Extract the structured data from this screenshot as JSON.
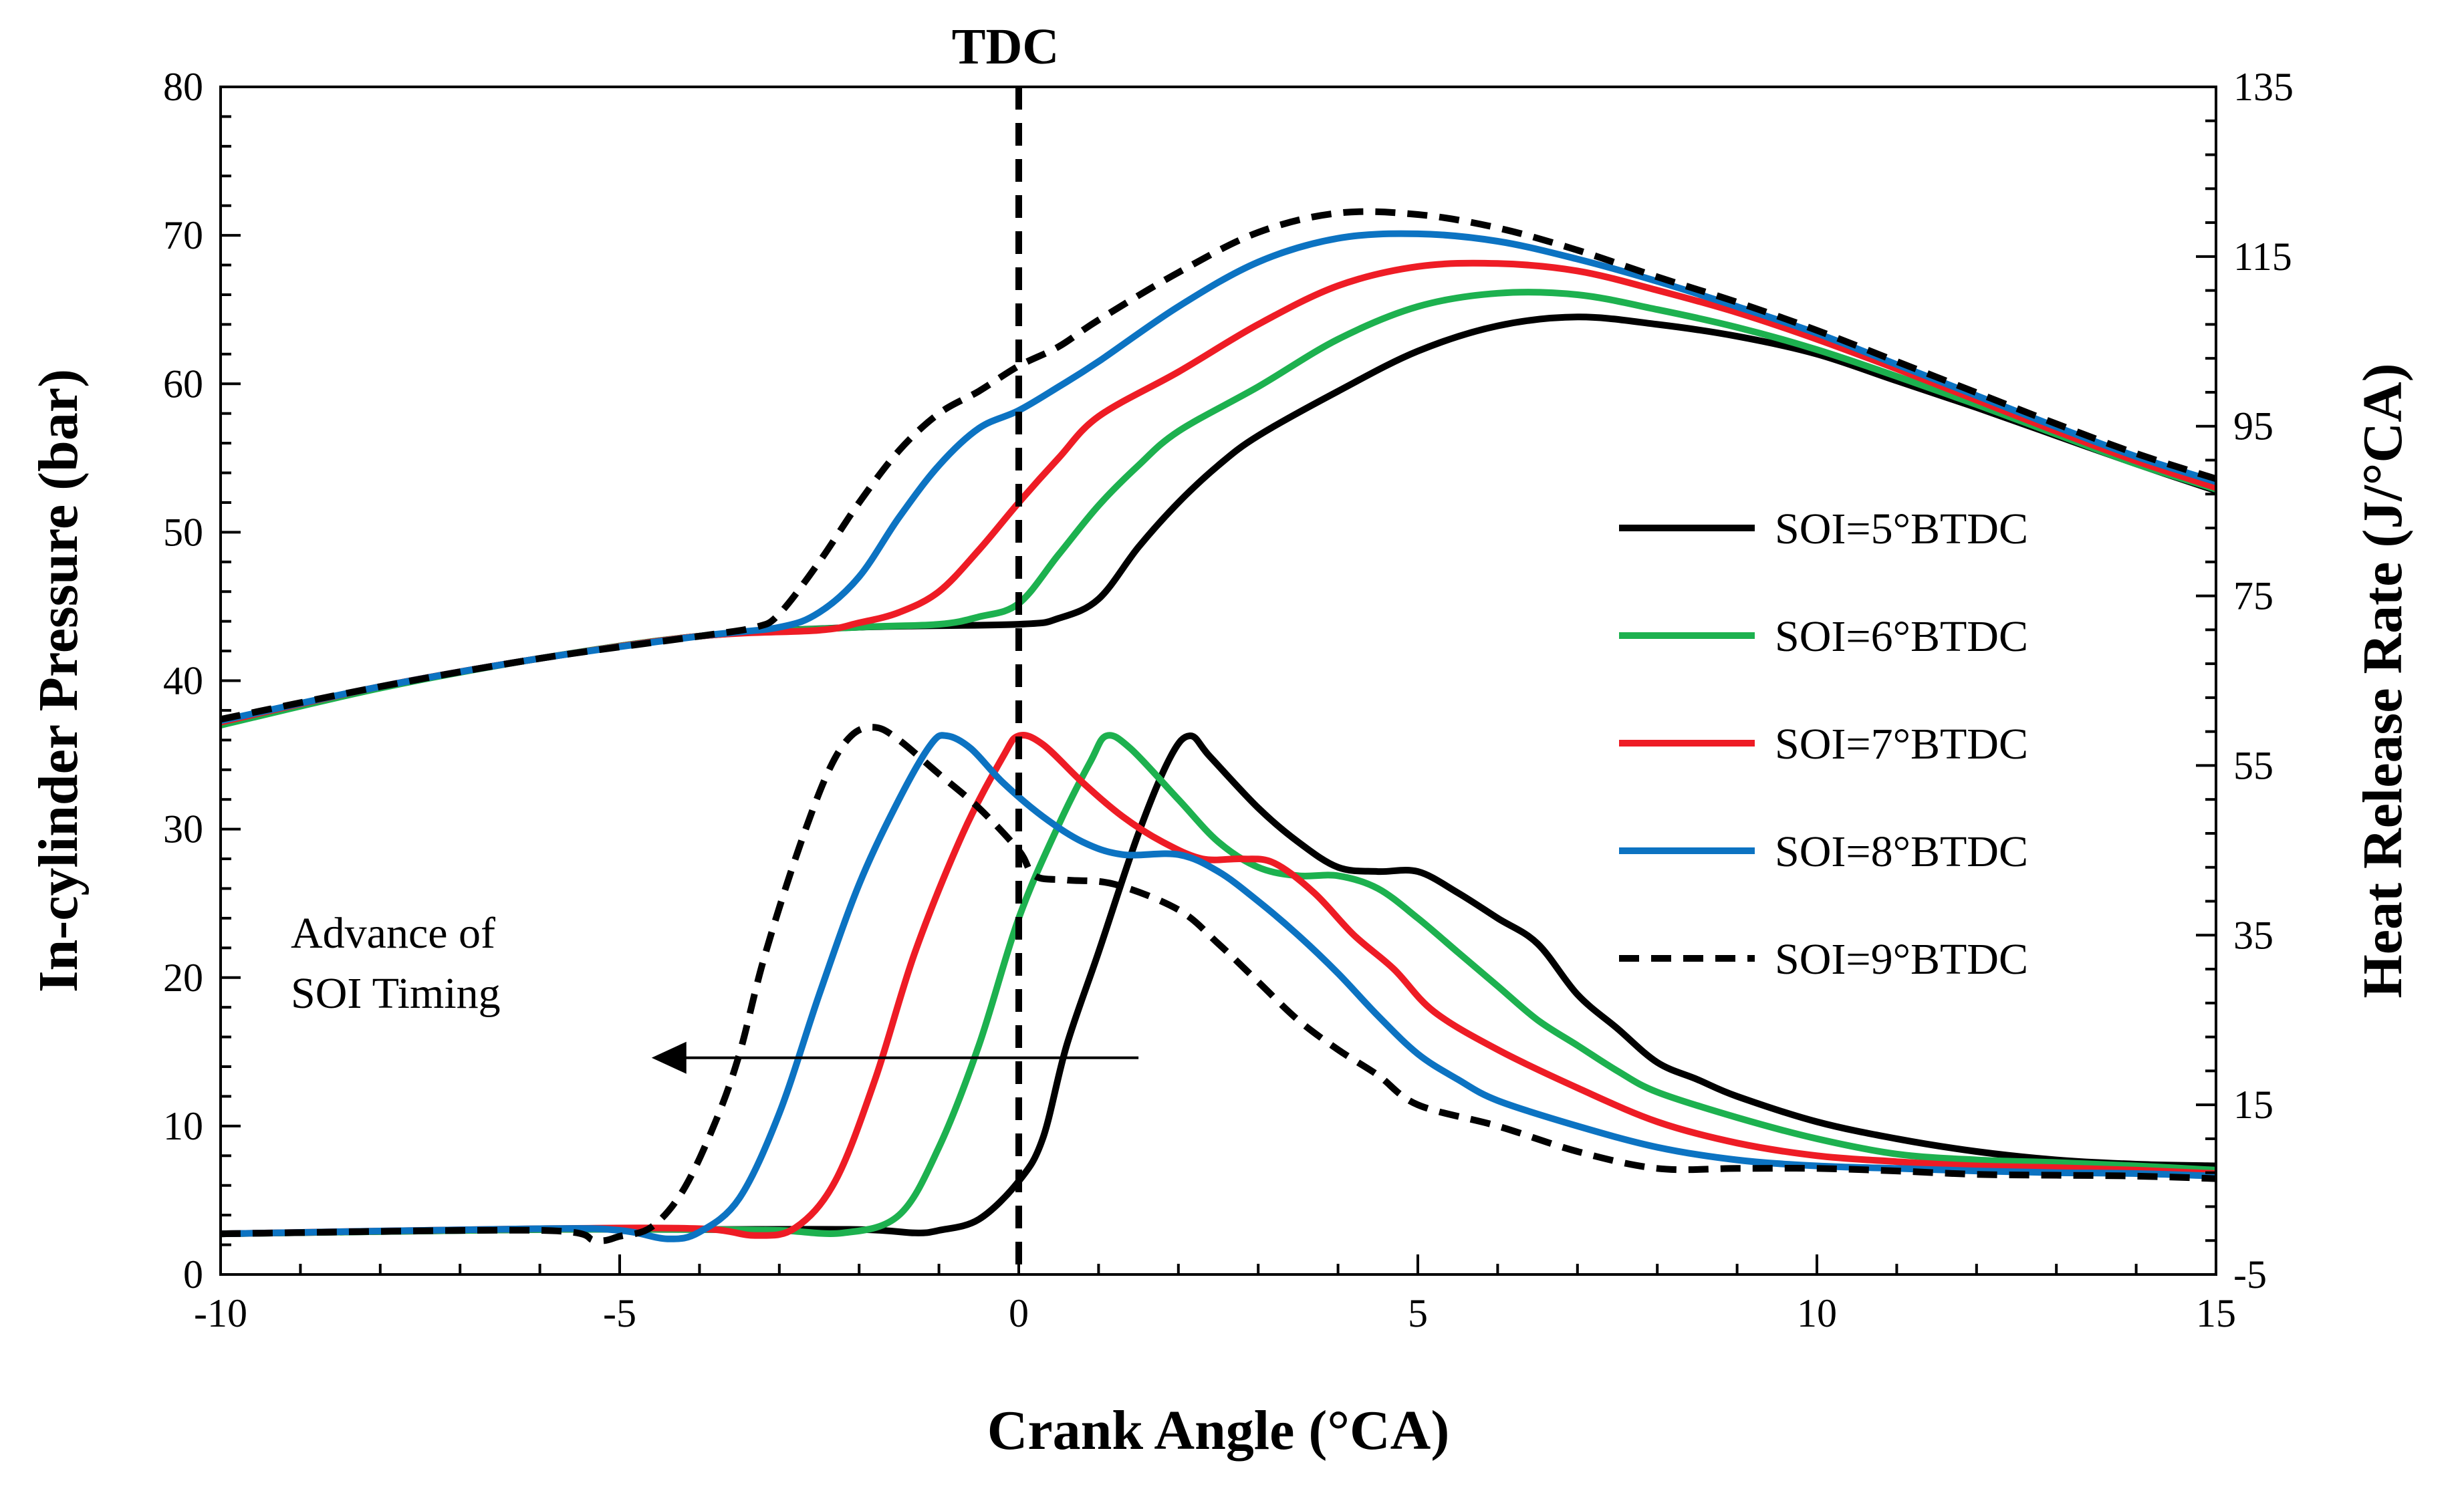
{
  "chart_data": {
    "type": "line",
    "title": "",
    "xlabel": "Crank Angle (°CA)",
    "ylabel_left": "In-cylinder Pressure (bar)",
    "ylabel_right": "Heat Release Rate (J/°CA)",
    "xlim": [
      -10,
      15
    ],
    "ylim_left": [
      0,
      80
    ],
    "ylim_right": [
      -5,
      135
    ],
    "x_ticks": [
      "-10",
      "-5",
      "0",
      "5",
      "10",
      "15"
    ],
    "y_left_ticks": [
      "0",
      "10",
      "20",
      "30",
      "40",
      "50",
      "60",
      "70",
      "80"
    ],
    "y_right_ticks": [
      "-5",
      "15",
      "35",
      "55",
      "75",
      "95",
      "115",
      "135"
    ],
    "grid": false,
    "legend_position": "right-center",
    "tdc_label": "TDC",
    "tdc_x": 0,
    "annotation": {
      "line1": "Advance of",
      "line2": "SOI Timing",
      "arrow_from_x": 1.5,
      "arrow_to_x": -4.6,
      "arrow_y": 14.6
    },
    "series": [
      {
        "name": "SOI=5°BTDC",
        "color": "#000000",
        "dash": "solid",
        "pressure": [
          [
            -10,
            37.2
          ],
          [
            -8,
            39.6
          ],
          [
            -6,
            41.5
          ],
          [
            -4,
            43.0
          ],
          [
            -2,
            43.6
          ],
          [
            0,
            43.8
          ],
          [
            0.5,
            44.2
          ],
          [
            1,
            45.5
          ],
          [
            1.5,
            49
          ],
          [
            2,
            52
          ],
          [
            2.5,
            54.5
          ],
          [
            3,
            56.5
          ],
          [
            4,
            59.5
          ],
          [
            5,
            62.2
          ],
          [
            6,
            63.9
          ],
          [
            7,
            64.5
          ],
          [
            8,
            64.0
          ],
          [
            9,
            63.2
          ],
          [
            10,
            62.0
          ],
          [
            11,
            60.2
          ],
          [
            12,
            58.4
          ],
          [
            13,
            56.5
          ],
          [
            14,
            54.6
          ],
          [
            15,
            52.8
          ]
        ],
        "hrr": [
          [
            -10,
            -0.2
          ],
          [
            -6,
            0.3
          ],
          [
            -4,
            0.3
          ],
          [
            -2,
            0.3
          ],
          [
            -1.3,
            -0.1
          ],
          [
            -1,
            0.2
          ],
          [
            -0.5,
            1.5
          ],
          [
            0,
            6
          ],
          [
            0.3,
            11
          ],
          [
            0.6,
            22
          ],
          [
            1,
            33
          ],
          [
            1.5,
            47
          ],
          [
            1.9,
            56
          ],
          [
            2.15,
            58.5
          ],
          [
            2.4,
            56
          ],
          [
            3,
            50
          ],
          [
            3.5,
            46
          ],
          [
            4,
            43
          ],
          [
            4.5,
            42.5
          ],
          [
            5,
            42.5
          ],
          [
            5.5,
            40
          ],
          [
            6,
            37
          ],
          [
            6.5,
            34
          ],
          [
            7,
            28
          ],
          [
            7.5,
            24
          ],
          [
            8,
            20
          ],
          [
            8.5,
            18
          ],
          [
            9,
            16
          ],
          [
            10,
            13
          ],
          [
            11,
            11
          ],
          [
            12,
            9.5
          ],
          [
            13,
            8.5
          ],
          [
            14,
            8
          ],
          [
            15,
            7.8
          ]
        ]
      },
      {
        "name": "SOI=6°BTDC",
        "color": "#1db14f",
        "dash": "solid",
        "pressure": [
          [
            -10,
            37.0
          ],
          [
            -8,
            39.5
          ],
          [
            -6,
            41.5
          ],
          [
            -4,
            43.0
          ],
          [
            -2,
            43.6
          ],
          [
            -1,
            43.8
          ],
          [
            -0.5,
            44.3
          ],
          [
            0,
            45.2
          ],
          [
            0.5,
            48.5
          ],
          [
            1,
            51.8
          ],
          [
            1.5,
            54.5
          ],
          [
            2,
            56.8
          ],
          [
            3,
            59.8
          ],
          [
            4,
            63.0
          ],
          [
            5,
            65.2
          ],
          [
            6,
            66.1
          ],
          [
            7,
            66.0
          ],
          [
            8,
            65.0
          ],
          [
            9,
            63.8
          ],
          [
            10,
            62.3
          ],
          [
            11,
            60.5
          ],
          [
            12,
            58.6
          ],
          [
            13,
            56.6
          ],
          [
            14,
            54.6
          ],
          [
            15,
            52.9
          ]
        ],
        "hrr": [
          [
            -10,
            -0.2
          ],
          [
            -6,
            0.3
          ],
          [
            -4,
            0.3
          ],
          [
            -3,
            0.2
          ],
          [
            -2.2,
            -0.1
          ],
          [
            -1.5,
            2
          ],
          [
            -1,
            10
          ],
          [
            -0.5,
            22
          ],
          [
            0,
            37
          ],
          [
            0.5,
            48
          ],
          [
            0.9,
            55.5
          ],
          [
            1.1,
            58.5
          ],
          [
            1.4,
            57
          ],
          [
            2,
            51
          ],
          [
            2.5,
            46
          ],
          [
            3,
            43
          ],
          [
            3.5,
            42
          ],
          [
            4,
            42
          ],
          [
            4.5,
            40.5
          ],
          [
            5,
            37
          ],
          [
            5.5,
            33
          ],
          [
            6,
            29
          ],
          [
            6.5,
            25
          ],
          [
            7,
            22
          ],
          [
            7.5,
            19
          ],
          [
            8,
            16.5
          ],
          [
            9,
            13.5
          ],
          [
            10,
            11
          ],
          [
            11,
            9.2
          ],
          [
            12,
            8.5
          ],
          [
            13,
            8.2
          ],
          [
            14,
            7.8
          ],
          [
            15,
            7.3
          ]
        ]
      },
      {
        "name": "SOI=7°BTDC",
        "color": "#ee1c25",
        "dash": "solid",
        "pressure": [
          [
            -10,
            37.2
          ],
          [
            -8,
            39.6
          ],
          [
            -6,
            41.5
          ],
          [
            -4,
            43.0
          ],
          [
            -2.5,
            43.4
          ],
          [
            -2,
            43.9
          ],
          [
            -1.5,
            44.6
          ],
          [
            -1,
            46
          ],
          [
            -0.5,
            48.8
          ],
          [
            0,
            52
          ],
          [
            0.5,
            55
          ],
          [
            1,
            57.8
          ],
          [
            2,
            60.8
          ],
          [
            3,
            64.0
          ],
          [
            4,
            66.6
          ],
          [
            5,
            67.9
          ],
          [
            6,
            68.1
          ],
          [
            7,
            67.6
          ],
          [
            8,
            66.3
          ],
          [
            9,
            64.8
          ],
          [
            10,
            63.0
          ],
          [
            11,
            61.0
          ],
          [
            12,
            58.9
          ],
          [
            13,
            56.8
          ],
          [
            14,
            54.8
          ],
          [
            15,
            53.0
          ]
        ],
        "hrr": [
          [
            -10,
            -0.2
          ],
          [
            -6,
            0.4
          ],
          [
            -4,
            0.4
          ],
          [
            -3.3,
            -0.4
          ],
          [
            -2.8,
            0.5
          ],
          [
            -2.3,
            6
          ],
          [
            -1.8,
            18
          ],
          [
            -1.3,
            33
          ],
          [
            -0.7,
            47
          ],
          [
            -0.2,
            56
          ],
          [
            0,
            58.5
          ],
          [
            0.3,
            57.5
          ],
          [
            0.8,
            53
          ],
          [
            1.3,
            49
          ],
          [
            1.8,
            46
          ],
          [
            2.3,
            44
          ],
          [
            2.8,
            44
          ],
          [
            3.2,
            43.5
          ],
          [
            3.7,
            40
          ],
          [
            4.2,
            35
          ],
          [
            4.7,
            31
          ],
          [
            5.2,
            26
          ],
          [
            6,
            21.5
          ],
          [
            7,
            17
          ],
          [
            8,
            13
          ],
          [
            9,
            10.5
          ],
          [
            10,
            9
          ],
          [
            11,
            8.3
          ],
          [
            12,
            7.8
          ],
          [
            13,
            7.6
          ],
          [
            14,
            7.3
          ],
          [
            15,
            6.9
          ]
        ]
      },
      {
        "name": "SOI=8°BTDC",
        "color": "#0c73c2",
        "dash": "solid",
        "pressure": [
          [
            -10,
            37.3
          ],
          [
            -8,
            39.6
          ],
          [
            -6,
            41.5
          ],
          [
            -4,
            43.0
          ],
          [
            -3,
            43.6
          ],
          [
            -2.5,
            44.6
          ],
          [
            -2,
            47
          ],
          [
            -1.5,
            51
          ],
          [
            -1,
            54.5
          ],
          [
            -0.5,
            57
          ],
          [
            0,
            58.2
          ],
          [
            0.5,
            59.8
          ],
          [
            1,
            61.5
          ],
          [
            2,
            65.2
          ],
          [
            3,
            68.2
          ],
          [
            4,
            69.8
          ],
          [
            5,
            70.1
          ],
          [
            6,
            69.6
          ],
          [
            7,
            68.4
          ],
          [
            8,
            66.9
          ],
          [
            9,
            65.2
          ],
          [
            10,
            63.4
          ],
          [
            11,
            61.3
          ],
          [
            12,
            59.2
          ],
          [
            13,
            57.1
          ],
          [
            14,
            55.1
          ],
          [
            15,
            53.4
          ]
        ],
        "hrr": [
          [
            -10,
            -0.2
          ],
          [
            -6,
            0.4
          ],
          [
            -5,
            0.2
          ],
          [
            -4.4,
            -0.8
          ],
          [
            -4,
            0
          ],
          [
            -3.5,
            4
          ],
          [
            -3,
            14
          ],
          [
            -2.5,
            28
          ],
          [
            -2,
            41
          ],
          [
            -1.5,
            51
          ],
          [
            -1.1,
            57.5
          ],
          [
            -0.9,
            58.5
          ],
          [
            -0.6,
            57
          ],
          [
            -0.2,
            53
          ],
          [
            0.3,
            49
          ],
          [
            0.8,
            46
          ],
          [
            1.3,
            44.5
          ],
          [
            2,
            44.5
          ],
          [
            2.5,
            42.5
          ],
          [
            3,
            39
          ],
          [
            3.5,
            35
          ],
          [
            4,
            30.5
          ],
          [
            4.5,
            25.5
          ],
          [
            5,
            21
          ],
          [
            5.5,
            18
          ],
          [
            6,
            15.5
          ],
          [
            7,
            12.5
          ],
          [
            8,
            10
          ],
          [
            9,
            8.5
          ],
          [
            10,
            7.8
          ],
          [
            11,
            7.5
          ],
          [
            12,
            7.2
          ],
          [
            13,
            7.0
          ],
          [
            14,
            6.9
          ],
          [
            15,
            6.6
          ]
        ]
      },
      {
        "name": "SOI=9°BTDC",
        "color": "#000000",
        "dash": "dashed",
        "pressure": [
          [
            -10,
            37.4
          ],
          [
            -8,
            39.6
          ],
          [
            -6,
            41.5
          ],
          [
            -4,
            43.0
          ],
          [
            -3.3,
            43.6
          ],
          [
            -3,
            44.5
          ],
          [
            -2.5,
            48
          ],
          [
            -2,
            52
          ],
          [
            -1.5,
            55.5
          ],
          [
            -1,
            58
          ],
          [
            -0.5,
            59.5
          ],
          [
            0,
            61.2
          ],
          [
            0.5,
            62.5
          ],
          [
            1,
            64.3
          ],
          [
            2,
            67.5
          ],
          [
            3,
            70.2
          ],
          [
            4,
            71.5
          ],
          [
            5,
            71.4
          ],
          [
            6,
            70.5
          ],
          [
            7,
            69.0
          ],
          [
            8,
            67.2
          ],
          [
            9,
            65.5
          ],
          [
            10,
            63.6
          ],
          [
            11,
            61.5
          ],
          [
            12,
            59.4
          ],
          [
            13,
            57.3
          ],
          [
            14,
            55.3
          ],
          [
            15,
            53.6
          ]
        ],
        "hrr": [
          [
            -10,
            -0.2
          ],
          [
            -6,
            0.2
          ],
          [
            -5.3,
            -1.0
          ],
          [
            -5,
            -0.5
          ],
          [
            -4.6,
            0.6
          ],
          [
            -4.2,
            5
          ],
          [
            -3.8,
            13
          ],
          [
            -3.5,
            21
          ],
          [
            -3.2,
            32
          ],
          [
            -2.8,
            44
          ],
          [
            -2.4,
            54
          ],
          [
            -2.1,
            58.5
          ],
          [
            -1.8,
            59.5
          ],
          [
            -1.5,
            58
          ],
          [
            -1,
            54
          ],
          [
            -0.5,
            50
          ],
          [
            0,
            45
          ],
          [
            0.2,
            42
          ],
          [
            0.6,
            41.5
          ],
          [
            1.2,
            41
          ],
          [
            2,
            38
          ],
          [
            2.5,
            34
          ],
          [
            3,
            29.5
          ],
          [
            3.5,
            25
          ],
          [
            4,
            21.5
          ],
          [
            4.5,
            18.5
          ],
          [
            5,
            15
          ],
          [
            6,
            12.5
          ],
          [
            7,
            9.5
          ],
          [
            8,
            7.5
          ],
          [
            9,
            7.5
          ],
          [
            10,
            7.5
          ],
          [
            11,
            7.2
          ],
          [
            12,
            6.8
          ],
          [
            13,
            6.7
          ],
          [
            14,
            6.6
          ],
          [
            15,
            6.3
          ]
        ]
      }
    ]
  }
}
